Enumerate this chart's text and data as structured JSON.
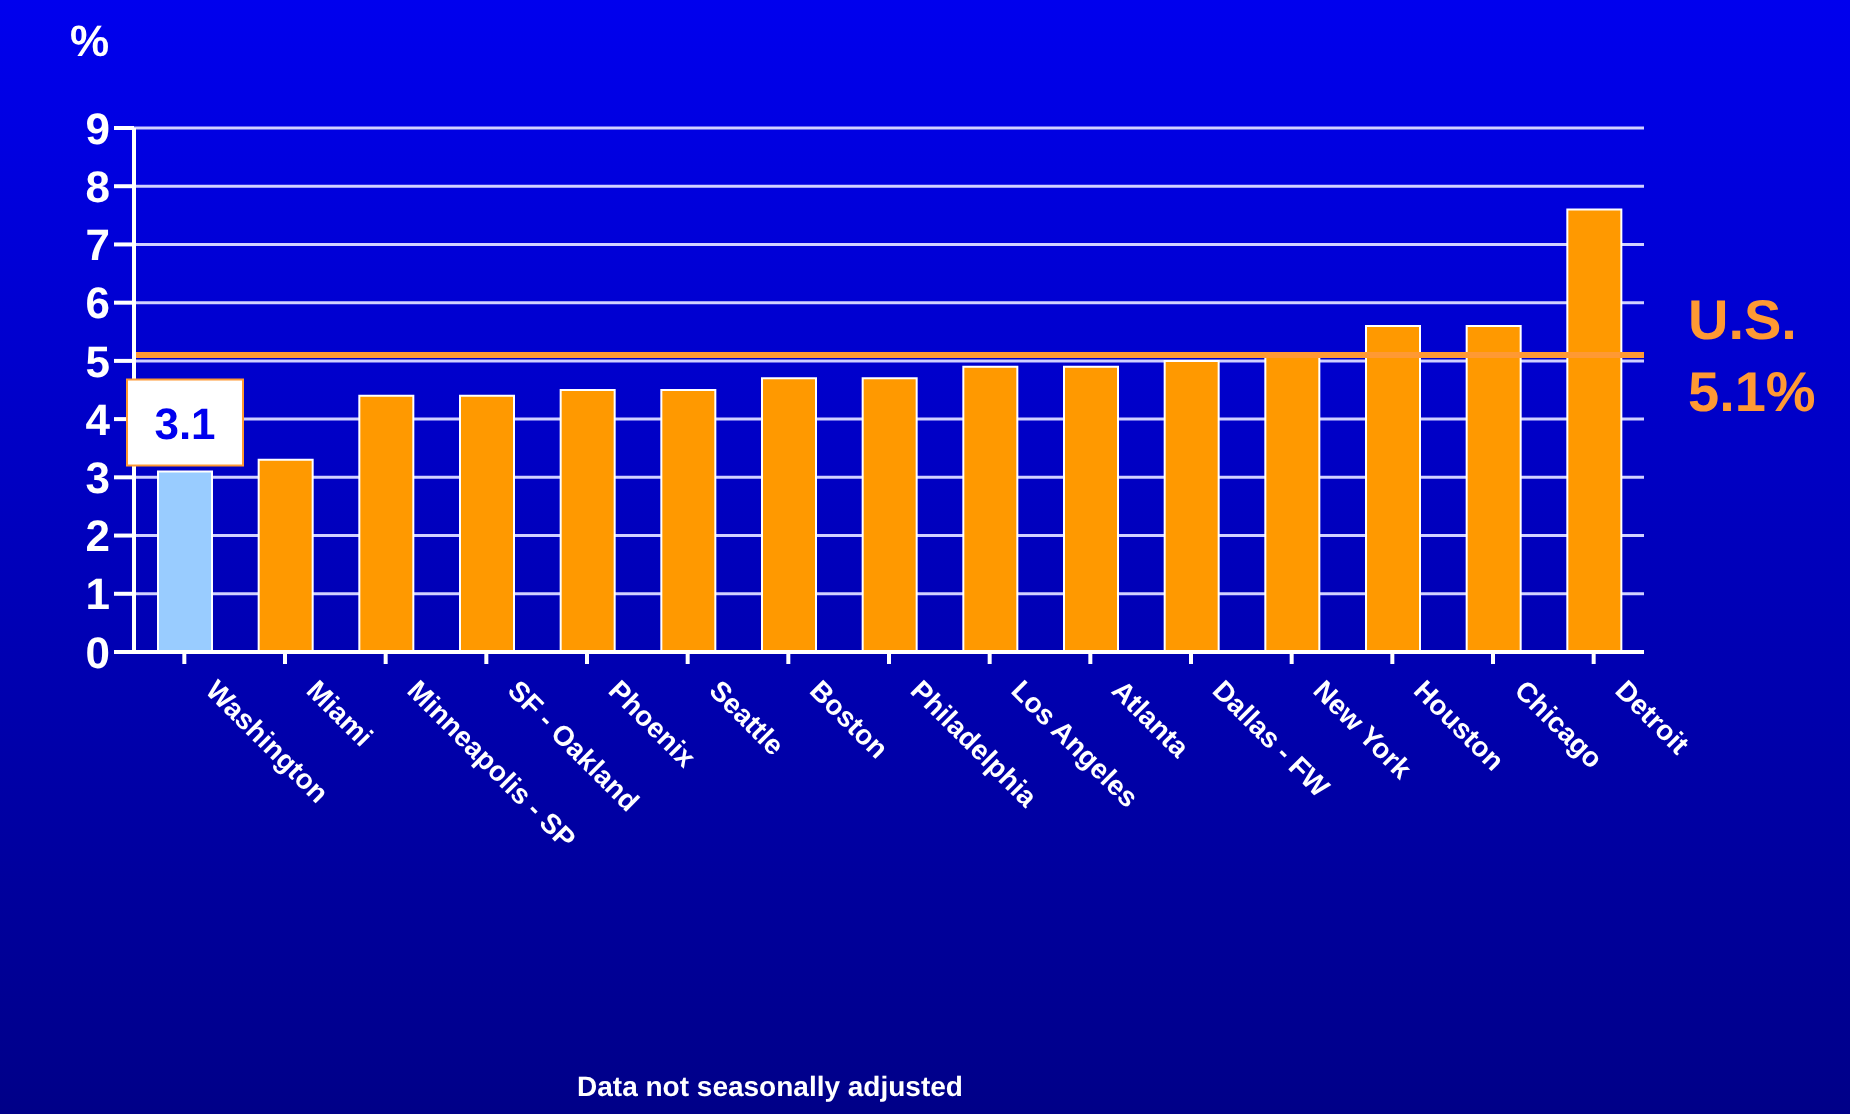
{
  "chart_data": {
    "type": "bar",
    "ylabel": "%",
    "categories": [
      "Washington",
      "Miami",
      "Minneapolis - SP",
      "SF - Oakland",
      "Phoenix",
      "Seattle",
      "Boston",
      "Philadelphia",
      "Los Angeles",
      "Atlanta",
      "Dallas - FW",
      "New York",
      "Houston",
      "Chicago",
      "Detroit"
    ],
    "values": [
      3.1,
      3.3,
      4.4,
      4.4,
      4.5,
      4.5,
      4.7,
      4.7,
      4.9,
      4.9,
      5.0,
      5.1,
      5.6,
      5.6,
      7.6
    ],
    "colors": [
      "#99ccff",
      "#ff9900",
      "#ff9900",
      "#ff9900",
      "#ff9900",
      "#ff9900",
      "#ff9900",
      "#ff9900",
      "#ff9900",
      "#ff9900",
      "#ff9900",
      "#ff9900",
      "#ff9900",
      "#ff9900",
      "#ff9900"
    ],
    "value_labels": [
      "3.1",
      null,
      null,
      null,
      null,
      null,
      null,
      null,
      null,
      null,
      null,
      null,
      null,
      null,
      null
    ],
    "ylim": [
      0,
      9
    ],
    "yticks": [
      0,
      1,
      2,
      3,
      4,
      5,
      6,
      7,
      8,
      9
    ],
    "grid": "y",
    "legend": false,
    "ref_lines": [
      {
        "axis": "y",
        "value": 5.1,
        "label": "U.S. 5.1%",
        "color": "#ff9933"
      }
    ],
    "annotations": [
      "Data not seasonally adjusted"
    ]
  }
}
